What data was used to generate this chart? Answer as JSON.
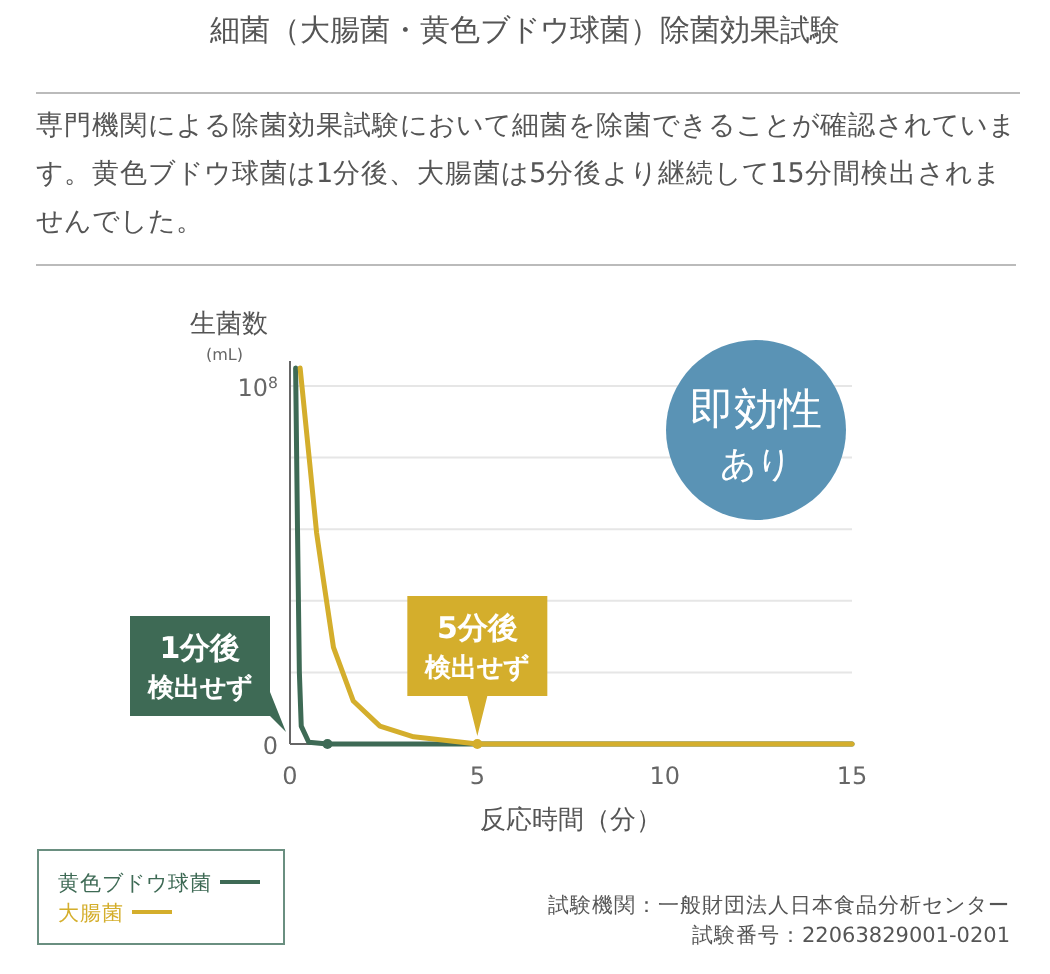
{
  "chart_data": {
    "type": "line",
    "title": "細菌（大腸菌・黄色ブドウ球菌）除菌効果試験",
    "subtitle": "専門機関による除菌効果試験において細菌を除菌できることが確認されています。黄色ブドウ球菌は1分後、大腸菌は5分後より継続して15分間検出されませんでした。",
    "xlabel": "反応時間（分）",
    "ylabel": "生菌数",
    "xlim": [
      0,
      15
    ],
    "xticks": [
      0,
      5,
      10,
      15
    ],
    "ylim": [
      0,
      107000000
    ],
    "yticks": [
      {
        "value": 0,
        "label": "0"
      },
      {
        "value": 20000000,
        "label": null
      },
      {
        "value": 40000000,
        "label": null
      },
      {
        "value": 60000000,
        "label": null
      },
      {
        "value": 80000000,
        "label": null
      },
      {
        "value": 100000000,
        "label": "10$^{8}$"
      }
    ],
    "grid": "y",
    "legend": "bottom left",
    "series": [
      {
        "name": "黄色ブドウ球菌",
        "color": "#3e6a55",
        "x": [
          0.15,
          0.2,
          0.25,
          0.3,
          0.5,
          1,
          15
        ],
        "values": [
          105000000,
          60000000,
          20000000,
          5000000,
          500000,
          0,
          0
        ]
      },
      {
        "name": "大腸菌",
        "color": "#d4ae2c",
        "x": [
          0.27,
          0.53,
          0.71,
          0.89,
          1.16,
          1.69,
          2.4,
          3.3,
          5,
          15
        ],
        "values": [
          105000000,
          78000000,
          59000000,
          46000000,
          27000000,
          12000000,
          5000000,
          2000000,
          0,
          0
        ]
      }
    ],
    "annotations": [
      "(mL)",
      {
        "text": "1分後検出せず",
        "x": 1,
        "y": 0
      },
      {
        "text": "5分後検出せず",
        "x": 5,
        "y": 0
      },
      "即効性あり",
      "試験機関：一般財団法人日本食品分析センター",
      "試験番号：22063829001-0201"
    ]
  }
}
